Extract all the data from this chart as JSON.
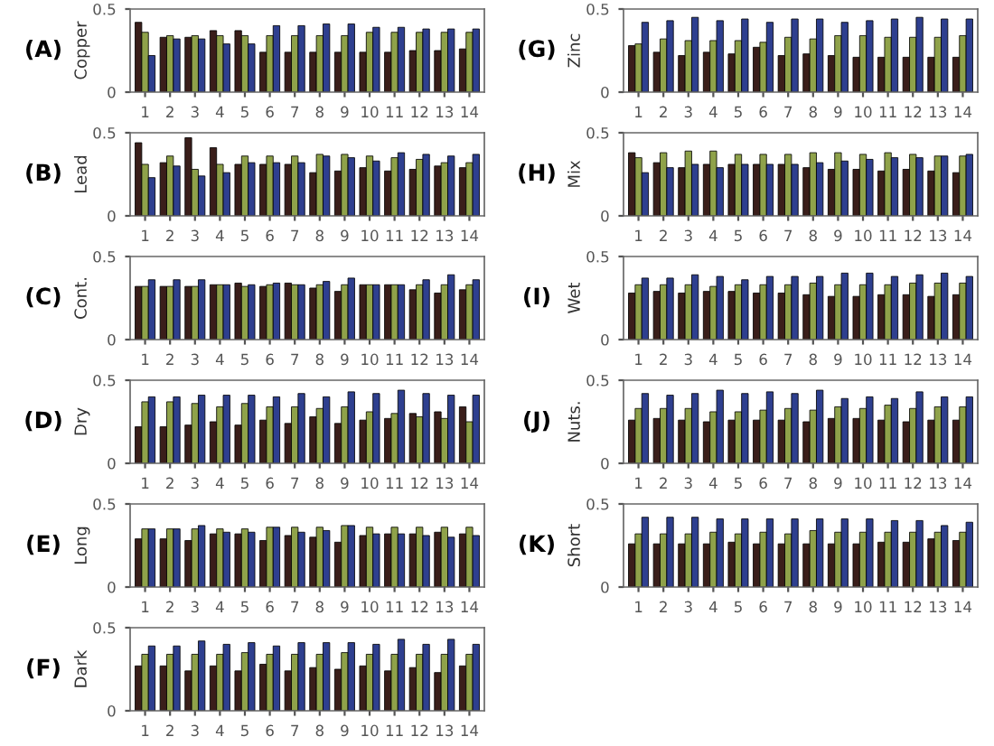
{
  "chart_data": [
    {
      "type": "bar",
      "title": "(A)",
      "ylabel": "Copper",
      "categories": [
        "1",
        "2",
        "3",
        "4",
        "5",
        "6",
        "7",
        "8",
        "9",
        "10",
        "11",
        "12",
        "13",
        "14"
      ],
      "ylim": [
        0,
        0.5
      ],
      "yticks": [
        0,
        0.5
      ],
      "series": [
        {
          "color": "#3a1e1a",
          "values": [
            0.42,
            0.33,
            0.33,
            0.37,
            0.37,
            0.24,
            0.24,
            0.24,
            0.24,
            0.24,
            0.24,
            0.25,
            0.25,
            0.26
          ]
        },
        {
          "color": "#8fa24a",
          "values": [
            0.36,
            0.34,
            0.34,
            0.34,
            0.34,
            0.34,
            0.34,
            0.34,
            0.34,
            0.36,
            0.36,
            0.36,
            0.36,
            0.36
          ]
        },
        {
          "color": "#2e3f8f",
          "values": [
            0.22,
            0.32,
            0.32,
            0.29,
            0.29,
            0.4,
            0.4,
            0.41,
            0.41,
            0.39,
            0.39,
            0.38,
            0.38,
            0.38
          ]
        }
      ]
    },
    {
      "type": "bar",
      "title": "(B)",
      "ylabel": "Lead",
      "categories": [
        "1",
        "2",
        "3",
        "4",
        "5",
        "6",
        "7",
        "8",
        "9",
        "10",
        "11",
        "12",
        "13",
        "14"
      ],
      "ylim": [
        0,
        0.5
      ],
      "yticks": [
        0,
        0.5
      ],
      "series": [
        {
          "color": "#3a1e1a",
          "values": [
            0.44,
            0.32,
            0.47,
            0.41,
            0.31,
            0.31,
            0.31,
            0.26,
            0.27,
            0.29,
            0.27,
            0.28,
            0.3,
            0.29
          ]
        },
        {
          "color": "#8fa24a",
          "values": [
            0.31,
            0.36,
            0.28,
            0.31,
            0.36,
            0.36,
            0.36,
            0.37,
            0.37,
            0.36,
            0.35,
            0.34,
            0.32,
            0.32
          ]
        },
        {
          "color": "#2e3f8f",
          "values": [
            0.23,
            0.3,
            0.24,
            0.26,
            0.32,
            0.32,
            0.32,
            0.36,
            0.35,
            0.33,
            0.38,
            0.37,
            0.36,
            0.37
          ]
        }
      ]
    },
    {
      "type": "bar",
      "title": "(C)",
      "ylabel": "Cont.",
      "categories": [
        "1",
        "2",
        "3",
        "4",
        "5",
        "6",
        "7",
        "8",
        "9",
        "10",
        "11",
        "12",
        "13",
        "14"
      ],
      "ylim": [
        0,
        0.5
      ],
      "yticks": [
        0,
        0.5
      ],
      "series": [
        {
          "color": "#3a1e1a",
          "values": [
            0.32,
            0.32,
            0.32,
            0.33,
            0.34,
            0.32,
            0.34,
            0.31,
            0.29,
            0.33,
            0.33,
            0.3,
            0.28,
            0.3
          ]
        },
        {
          "color": "#8fa24a",
          "values": [
            0.32,
            0.32,
            0.32,
            0.33,
            0.32,
            0.33,
            0.33,
            0.33,
            0.33,
            0.33,
            0.33,
            0.33,
            0.33,
            0.33
          ]
        },
        {
          "color": "#2e3f8f",
          "values": [
            0.36,
            0.36,
            0.36,
            0.33,
            0.33,
            0.34,
            0.33,
            0.35,
            0.37,
            0.33,
            0.33,
            0.36,
            0.39,
            0.36
          ]
        }
      ]
    },
    {
      "type": "bar",
      "title": "(D)",
      "ylabel": "Dry",
      "categories": [
        "1",
        "2",
        "3",
        "4",
        "5",
        "6",
        "7",
        "8",
        "9",
        "10",
        "11",
        "12",
        "13",
        "14"
      ],
      "ylim": [
        0,
        0.5
      ],
      "yticks": [
        0,
        0.5
      ],
      "series": [
        {
          "color": "#3a1e1a",
          "values": [
            0.22,
            0.22,
            0.23,
            0.25,
            0.23,
            0.26,
            0.24,
            0.28,
            0.24,
            0.26,
            0.27,
            0.3,
            0.31,
            0.34
          ]
        },
        {
          "color": "#8fa24a",
          "values": [
            0.37,
            0.37,
            0.36,
            0.34,
            0.36,
            0.34,
            0.34,
            0.33,
            0.34,
            0.31,
            0.3,
            0.28,
            0.27,
            0.25
          ]
        },
        {
          "color": "#2e3f8f",
          "values": [
            0.4,
            0.4,
            0.41,
            0.41,
            0.41,
            0.4,
            0.42,
            0.4,
            0.43,
            0.42,
            0.44,
            0.42,
            0.41,
            0.41
          ]
        }
      ]
    },
    {
      "type": "bar",
      "title": "(E)",
      "ylabel": "Long",
      "categories": [
        "1",
        "2",
        "3",
        "4",
        "5",
        "6",
        "7",
        "8",
        "9",
        "10",
        "11",
        "12",
        "13",
        "14"
      ],
      "ylim": [
        0,
        0.5
      ],
      "yticks": [
        0,
        0.5
      ],
      "series": [
        {
          "color": "#3a1e1a",
          "values": [
            0.29,
            0.29,
            0.28,
            0.32,
            0.32,
            0.28,
            0.31,
            0.3,
            0.27,
            0.31,
            0.32,
            0.32,
            0.33,
            0.32
          ]
        },
        {
          "color": "#8fa24a",
          "values": [
            0.35,
            0.35,
            0.35,
            0.35,
            0.35,
            0.36,
            0.36,
            0.36,
            0.37,
            0.36,
            0.36,
            0.36,
            0.36,
            0.36
          ]
        },
        {
          "color": "#2e3f8f",
          "values": [
            0.35,
            0.35,
            0.37,
            0.33,
            0.33,
            0.36,
            0.33,
            0.34,
            0.37,
            0.32,
            0.32,
            0.31,
            0.3,
            0.31
          ]
        }
      ]
    },
    {
      "type": "bar",
      "title": "(F)",
      "ylabel": "Dark",
      "categories": [
        "1",
        "2",
        "3",
        "4",
        "5",
        "6",
        "7",
        "8",
        "9",
        "10",
        "11",
        "12",
        "13",
        "14"
      ],
      "ylim": [
        0,
        0.5
      ],
      "yticks": [
        0,
        0.5
      ],
      "series": [
        {
          "color": "#3a1e1a",
          "values": [
            0.27,
            0.27,
            0.24,
            0.27,
            0.24,
            0.28,
            0.24,
            0.26,
            0.25,
            0.27,
            0.24,
            0.26,
            0.23,
            0.27
          ]
        },
        {
          "color": "#8fa24a",
          "values": [
            0.34,
            0.34,
            0.34,
            0.34,
            0.35,
            0.34,
            0.34,
            0.34,
            0.35,
            0.34,
            0.34,
            0.34,
            0.34,
            0.34
          ]
        },
        {
          "color": "#2e3f8f",
          "values": [
            0.39,
            0.39,
            0.42,
            0.4,
            0.41,
            0.39,
            0.41,
            0.41,
            0.41,
            0.4,
            0.43,
            0.4,
            0.43,
            0.4
          ]
        }
      ]
    },
    {
      "type": "bar",
      "title": "(G)",
      "ylabel": "Zinc",
      "categories": [
        "1",
        "2",
        "3",
        "4",
        "5",
        "6",
        "7",
        "8",
        "9",
        "10",
        "11",
        "12",
        "13",
        "14"
      ],
      "ylim": [
        0,
        0.5
      ],
      "yticks": [
        0,
        0.5
      ],
      "series": [
        {
          "color": "#3a1e1a",
          "values": [
            0.28,
            0.24,
            0.22,
            0.24,
            0.23,
            0.27,
            0.22,
            0.23,
            0.22,
            0.21,
            0.21,
            0.21,
            0.21,
            0.21
          ]
        },
        {
          "color": "#8fa24a",
          "values": [
            0.29,
            0.32,
            0.31,
            0.31,
            0.31,
            0.3,
            0.33,
            0.32,
            0.34,
            0.34,
            0.33,
            0.33,
            0.33,
            0.34
          ]
        },
        {
          "color": "#2e3f8f",
          "values": [
            0.42,
            0.43,
            0.45,
            0.43,
            0.44,
            0.42,
            0.44,
            0.44,
            0.42,
            0.43,
            0.44,
            0.45,
            0.44,
            0.44
          ]
        }
      ]
    },
    {
      "type": "bar",
      "title": "(H)",
      "ylabel": "Mix",
      "categories": [
        "1",
        "2",
        "3",
        "4",
        "5",
        "6",
        "7",
        "8",
        "9",
        "10",
        "11",
        "12",
        "13",
        "14"
      ],
      "ylim": [
        0,
        0.5
      ],
      "yticks": [
        0,
        0.5
      ],
      "series": [
        {
          "color": "#3a1e1a",
          "values": [
            0.38,
            0.32,
            0.29,
            0.31,
            0.31,
            0.31,
            0.31,
            0.29,
            0.28,
            0.28,
            0.27,
            0.28,
            0.27,
            0.26
          ]
        },
        {
          "color": "#8fa24a",
          "values": [
            0.35,
            0.38,
            0.39,
            0.39,
            0.37,
            0.37,
            0.37,
            0.38,
            0.38,
            0.37,
            0.38,
            0.37,
            0.36,
            0.36
          ]
        },
        {
          "color": "#2e3f8f",
          "values": [
            0.26,
            0.29,
            0.31,
            0.29,
            0.31,
            0.31,
            0.31,
            0.32,
            0.33,
            0.34,
            0.35,
            0.35,
            0.36,
            0.37
          ]
        }
      ]
    },
    {
      "type": "bar",
      "title": "(I)",
      "ylabel": "Wet",
      "categories": [
        "1",
        "2",
        "3",
        "4",
        "5",
        "6",
        "7",
        "8",
        "9",
        "10",
        "11",
        "12",
        "13",
        "14"
      ],
      "ylim": [
        0,
        0.5
      ],
      "yticks": [
        0,
        0.5
      ],
      "series": [
        {
          "color": "#3a1e1a",
          "values": [
            0.28,
            0.29,
            0.28,
            0.29,
            0.29,
            0.28,
            0.28,
            0.27,
            0.26,
            0.26,
            0.27,
            0.27,
            0.26,
            0.27
          ]
        },
        {
          "color": "#8fa24a",
          "values": [
            0.33,
            0.33,
            0.33,
            0.32,
            0.33,
            0.33,
            0.33,
            0.34,
            0.33,
            0.33,
            0.33,
            0.34,
            0.34,
            0.34
          ]
        },
        {
          "color": "#2e3f8f",
          "values": [
            0.37,
            0.37,
            0.39,
            0.38,
            0.36,
            0.38,
            0.38,
            0.38,
            0.4,
            0.4,
            0.38,
            0.39,
            0.4,
            0.38
          ]
        }
      ]
    },
    {
      "type": "bar",
      "title": "(J)",
      "ylabel": "Nuts.",
      "categories": [
        "1",
        "2",
        "3",
        "4",
        "5",
        "6",
        "7",
        "8",
        "9",
        "10",
        "11",
        "12",
        "13",
        "14"
      ],
      "ylim": [
        0,
        0.5
      ],
      "yticks": [
        0,
        0.5
      ],
      "series": [
        {
          "color": "#3a1e1a",
          "values": [
            0.26,
            0.27,
            0.26,
            0.25,
            0.26,
            0.26,
            0.26,
            0.25,
            0.27,
            0.27,
            0.26,
            0.25,
            0.26,
            0.26
          ]
        },
        {
          "color": "#8fa24a",
          "values": [
            0.33,
            0.33,
            0.33,
            0.31,
            0.31,
            0.32,
            0.33,
            0.32,
            0.34,
            0.33,
            0.35,
            0.33,
            0.34,
            0.34
          ]
        },
        {
          "color": "#2e3f8f",
          "values": [
            0.42,
            0.41,
            0.42,
            0.44,
            0.42,
            0.43,
            0.42,
            0.44,
            0.39,
            0.4,
            0.39,
            0.43,
            0.4,
            0.4
          ]
        }
      ]
    },
    {
      "type": "bar",
      "title": "(K)",
      "ylabel": "Short",
      "categories": [
        "1",
        "2",
        "3",
        "4",
        "5",
        "6",
        "7",
        "8",
        "9",
        "10",
        "11",
        "12",
        "13",
        "14"
      ],
      "ylim": [
        0,
        0.5
      ],
      "yticks": [
        0,
        0.5
      ],
      "series": [
        {
          "color": "#3a1e1a",
          "values": [
            0.26,
            0.26,
            0.26,
            0.26,
            0.27,
            0.26,
            0.26,
            0.26,
            0.26,
            0.26,
            0.27,
            0.27,
            0.29,
            0.28
          ]
        },
        {
          "color": "#8fa24a",
          "values": [
            0.32,
            0.32,
            0.32,
            0.33,
            0.32,
            0.33,
            0.32,
            0.34,
            0.33,
            0.33,
            0.33,
            0.33,
            0.33,
            0.33
          ]
        },
        {
          "color": "#2e3f8f",
          "values": [
            0.42,
            0.42,
            0.42,
            0.41,
            0.41,
            0.41,
            0.41,
            0.41,
            0.41,
            0.41,
            0.4,
            0.4,
            0.37,
            0.39
          ]
        }
      ]
    }
  ]
}
